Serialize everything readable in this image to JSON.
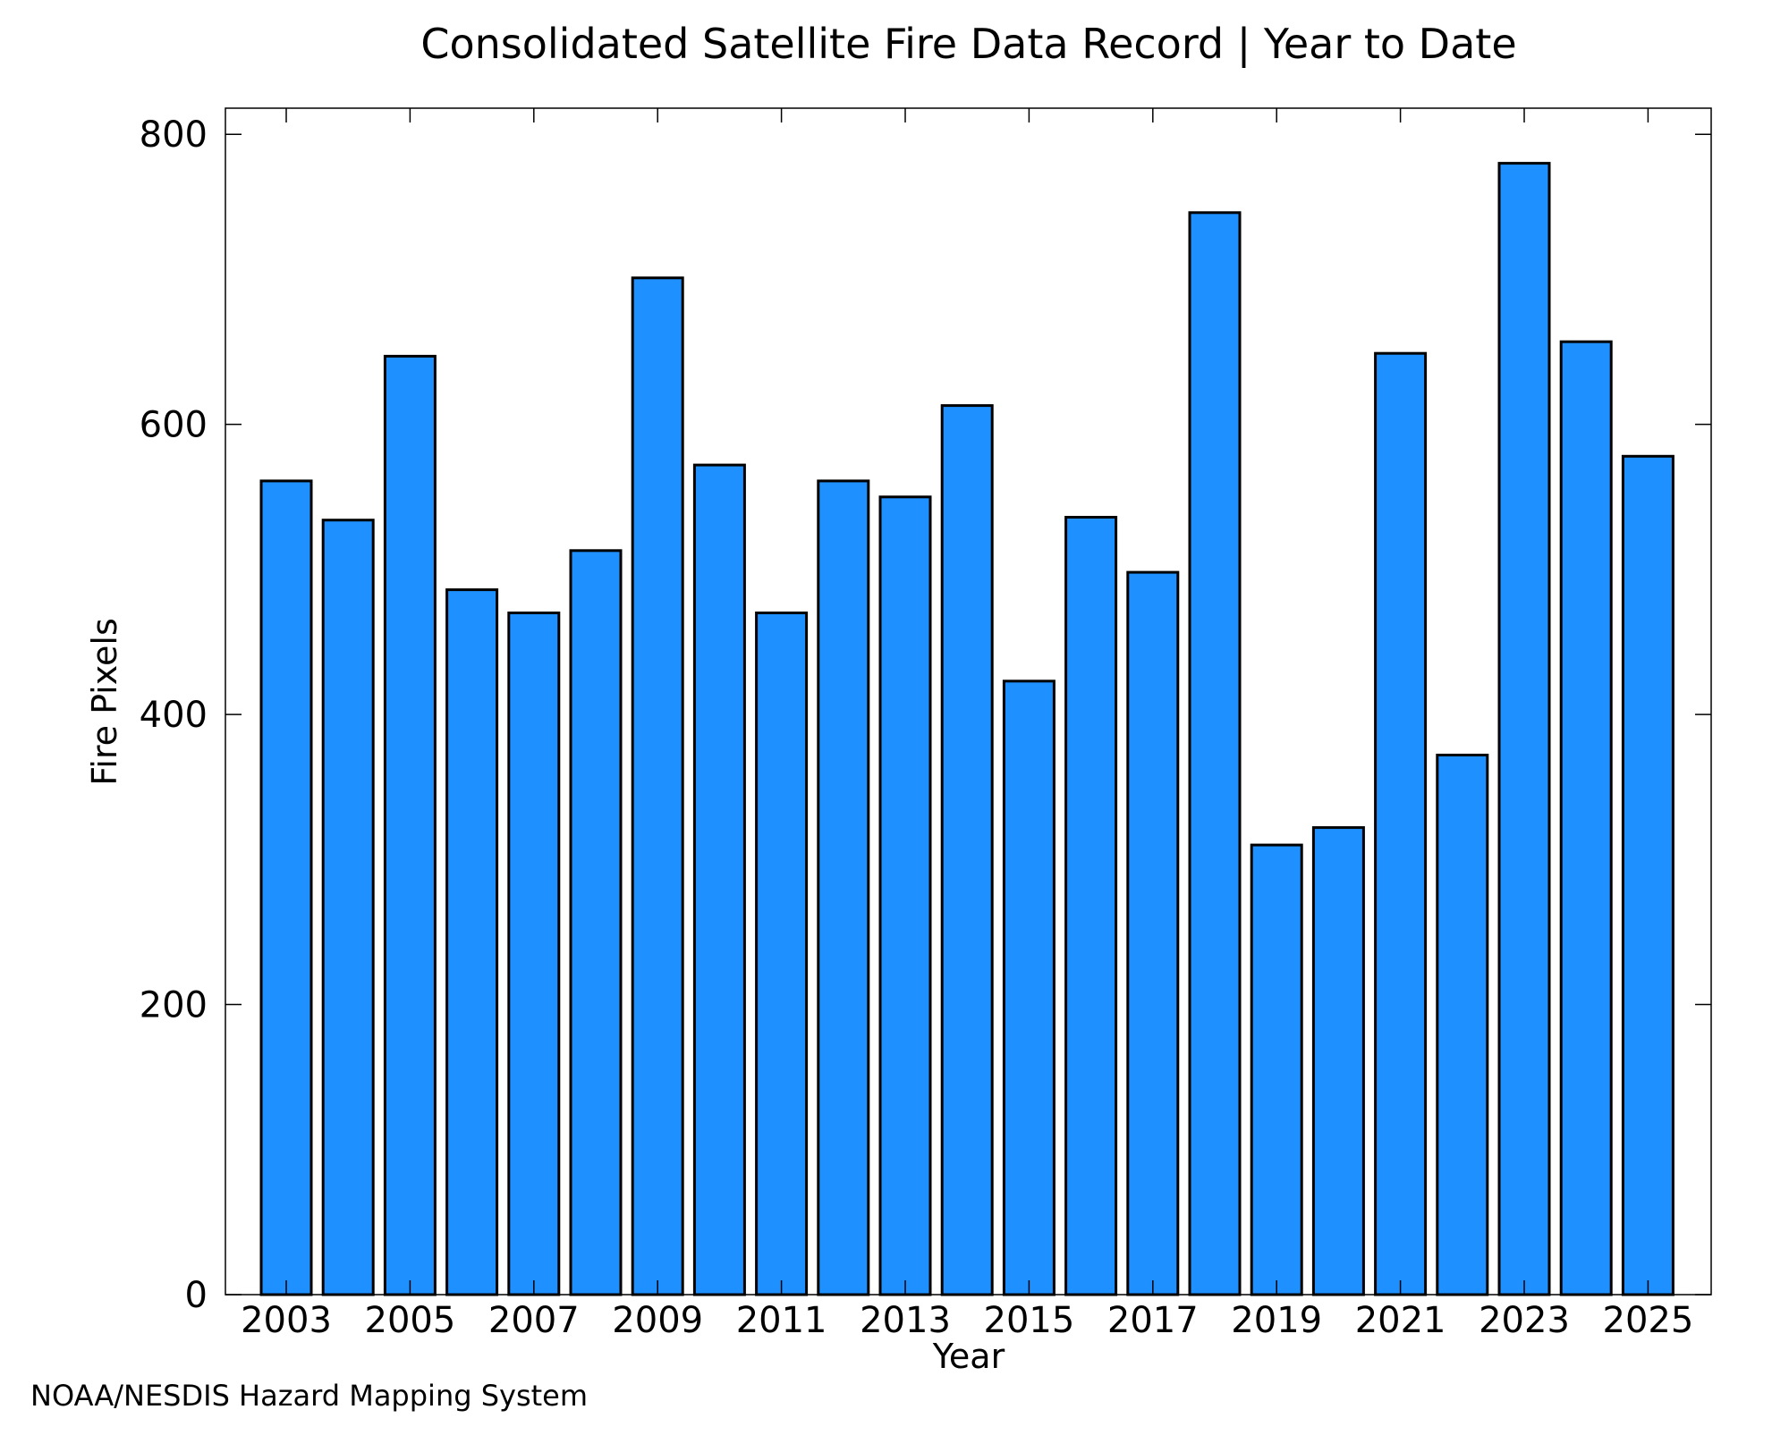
{
  "chart_data": {
    "type": "bar",
    "title": "Consolidated Satellite Fire Data Record | Year to Date",
    "xlabel": "Year",
    "ylabel": "Fire Pixels",
    "categories": [
      "2003",
      "2004",
      "2005",
      "2006",
      "2007",
      "2008",
      "2009",
      "2010",
      "2011",
      "2012",
      "2013",
      "2014",
      "2015",
      "2016",
      "2017",
      "2018",
      "2019",
      "2020",
      "2021",
      "2022",
      "2023",
      "2024",
      "2025"
    ],
    "values": [
      561,
      534,
      647,
      486,
      470,
      513,
      701,
      572,
      470,
      561,
      550,
      613,
      423,
      536,
      498,
      746,
      310,
      322,
      649,
      372,
      780,
      657,
      578
    ],
    "x_tick_labels": [
      "2003",
      "2005",
      "2007",
      "2009",
      "2011",
      "2013",
      "2015",
      "2017",
      "2019",
      "2021",
      "2023",
      "2025"
    ],
    "y_tick_labels": [
      "0",
      "200",
      "400",
      "600",
      "800"
    ],
    "y_ticks": [
      0,
      200,
      400,
      600,
      800
    ],
    "ylim": [
      0,
      818
    ],
    "grid": false,
    "legend": "none",
    "bar_color": "#1e90ff",
    "bar_edge_color": "#000000"
  },
  "credit": "NOAA/NESDIS Hazard Mapping System",
  "colors": {
    "bar": "#1e90ff",
    "credit_text": "#808080"
  }
}
